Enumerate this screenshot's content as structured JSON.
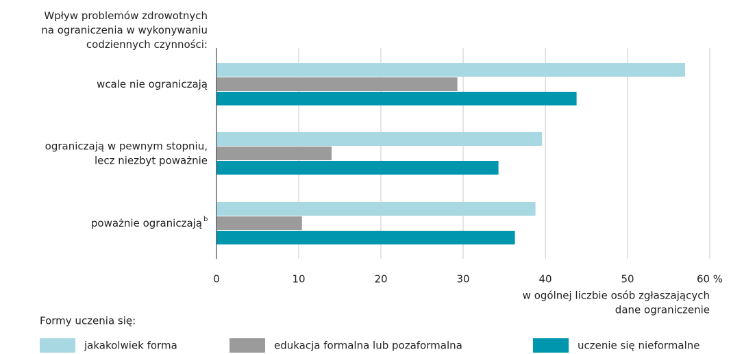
{
  "chart_data": {
    "type": "bar",
    "orientation": "horizontal",
    "title": "Wpływ problemów zdrowotnych\nna ograniczenia w wykonywaniu\ncodziennych czynności:",
    "categories": [
      "wcale nie ograniczają",
      "ograniczają w pewnym stopniu,\nlecz niezbyt poważnie",
      "poważnie ograniczają"
    ],
    "category_notes": [
      null,
      null,
      "b"
    ],
    "series": [
      {
        "name": "jakakolwiek forma",
        "color": "#a8d8e2",
        "values": [
          57.0,
          39.6,
          38.8
        ]
      },
      {
        "name": "edukacja formalna lub pozaformalna",
        "color": "#9b9b9b",
        "values": [
          29.3,
          14.0,
          10.4
        ]
      },
      {
        "name": "uczenie się nieformalne",
        "color": "#0096ae",
        "values": [
          43.8,
          34.3,
          36.3
        ]
      }
    ],
    "xlabel": "w ogólnej liczbie osób zgłaszających\ndane ograniczenie",
    "legend_title": "Formy uczenia się:",
    "xlim": [
      0,
      60
    ],
    "xticks": [
      0,
      10,
      20,
      30,
      40,
      50,
      {
        "value": 60,
        "label": "60 %"
      }
    ],
    "grid": true
  }
}
